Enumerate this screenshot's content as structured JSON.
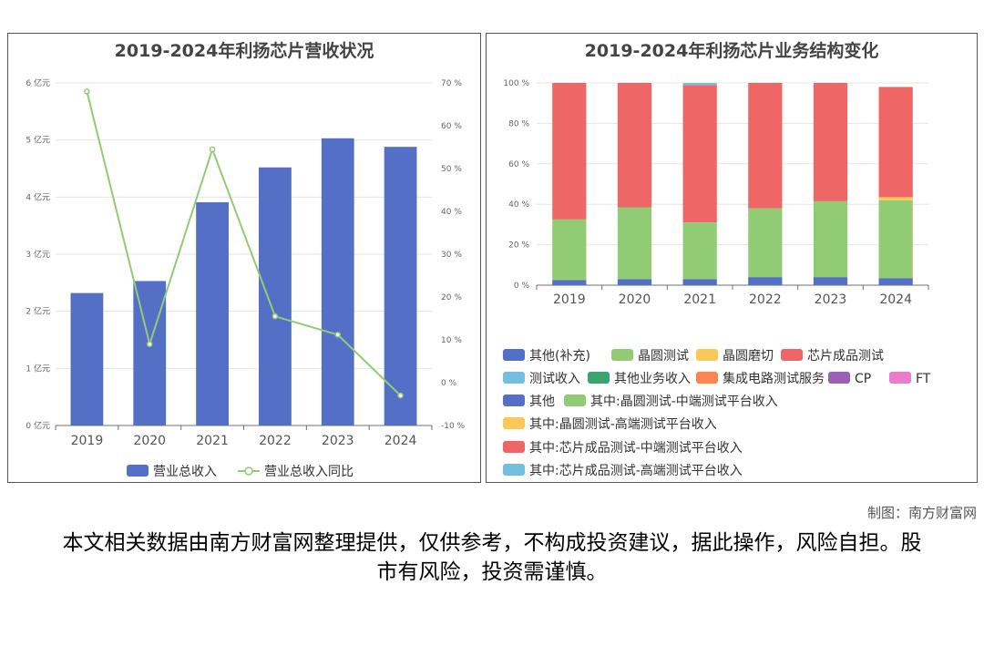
{
  "left_chart": {
    "title": "2019-2024年利扬芯片营收状况",
    "categories": [
      "2019",
      "2020",
      "2021",
      "2022",
      "2023",
      "2024"
    ],
    "left_ticks": [
      "0 亿元",
      "1 亿元",
      "2 亿元",
      "3 亿元",
      "4 亿元",
      "5 亿元",
      "6 亿元"
    ],
    "right_ticks": [
      "-10 %",
      "0 %",
      "10 %",
      "20 %",
      "30 %",
      "40 %",
      "50 %",
      "60 %",
      "70 %"
    ],
    "legend": [
      "营业总收入",
      "营业总收入同比"
    ]
  },
  "right_chart": {
    "title": "2019-2024年利扬芯片业务结构变化",
    "categories": [
      "2019",
      "2020",
      "2021",
      "2022",
      "2023",
      "2024"
    ],
    "y_ticks": [
      "0 %",
      "20 %",
      "40 %",
      "60 %",
      "80 %",
      "100 %"
    ],
    "legend": [
      [
        "其他(补充)",
        "晶圆测试",
        "晶圆磨切",
        "芯片成品测试"
      ],
      [
        "测试收入",
        "其他业务收入",
        "集成电路测试服务",
        "CP",
        "FT"
      ],
      [
        "其他",
        "其中:晶圆测试-中端测试平台收入"
      ],
      [
        "其中:晶圆测试-高端测试平台收入"
      ],
      [
        "其中:芯片成品测试-中端测试平台收入"
      ],
      [
        "其中:芯片成品测试-高端测试平台收入"
      ]
    ]
  },
  "chart_data": [
    {
      "type": "bar",
      "title": "2019-2024年利扬芯片营收状况",
      "categories": [
        "2019",
        "2020",
        "2021",
        "2022",
        "2023",
        "2024"
      ],
      "series": [
        {
          "name": "营业总收入",
          "type": "bar",
          "axis": "left",
          "unit": "亿元",
          "values": [
            2.32,
            2.53,
            3.91,
            4.52,
            5.03,
            4.88
          ]
        },
        {
          "name": "营业总收入同比",
          "type": "line",
          "axis": "right",
          "unit": "%",
          "values": [
            68.0,
            9.0,
            54.5,
            15.5,
            11.2,
            -3.0
          ]
        }
      ],
      "ylim_left": [
        0,
        6
      ],
      "ylim_right": [
        -10,
        70
      ],
      "legend": "bottom"
    },
    {
      "type": "bar",
      "stacked": true,
      "title": "2019-2024年利扬芯片业务结构变化",
      "categories": [
        "2019",
        "2020",
        "2021",
        "2022",
        "2023",
        "2024"
      ],
      "unit": "%",
      "series": [
        {
          "name": "其他(补充)",
          "values": [
            2.5,
            3.0,
            3.0,
            4.0,
            4.0,
            3.5
          ]
        },
        {
          "name": "晶圆测试",
          "values": [
            30.0,
            35.5,
            28.0,
            34.0,
            37.5,
            38.5
          ]
        },
        {
          "name": "晶圆磨切",
          "values": [
            0,
            0,
            0,
            0,
            0,
            1.5
          ]
        },
        {
          "name": "芯片成品测试",
          "values": [
            67.5,
            61.5,
            68.0,
            62.0,
            58.5,
            54.5
          ]
        },
        {
          "name": "测试收入",
          "values": [
            0,
            0,
            1.0,
            0,
            0,
            0
          ]
        }
      ],
      "ylim": [
        0,
        100
      ],
      "legend": "bottom"
    }
  ],
  "colors": {
    "blue": "#5470c6",
    "green": "#91cc75",
    "yellow": "#fac858",
    "red": "#ee6666",
    "cyan": "#73c0de",
    "dark_green": "#3ba272",
    "orange": "#fc8452",
    "purple": "#9a60b4",
    "pink": "#ea7ccc"
  },
  "footer": {
    "credit": "制图：南方财富网",
    "disclaimer": "本文相关数据由南方财富网整理提供，仅供参考，不构成投资建议，据此操作，风险自担。股市有风险，投资需谨慎。"
  }
}
